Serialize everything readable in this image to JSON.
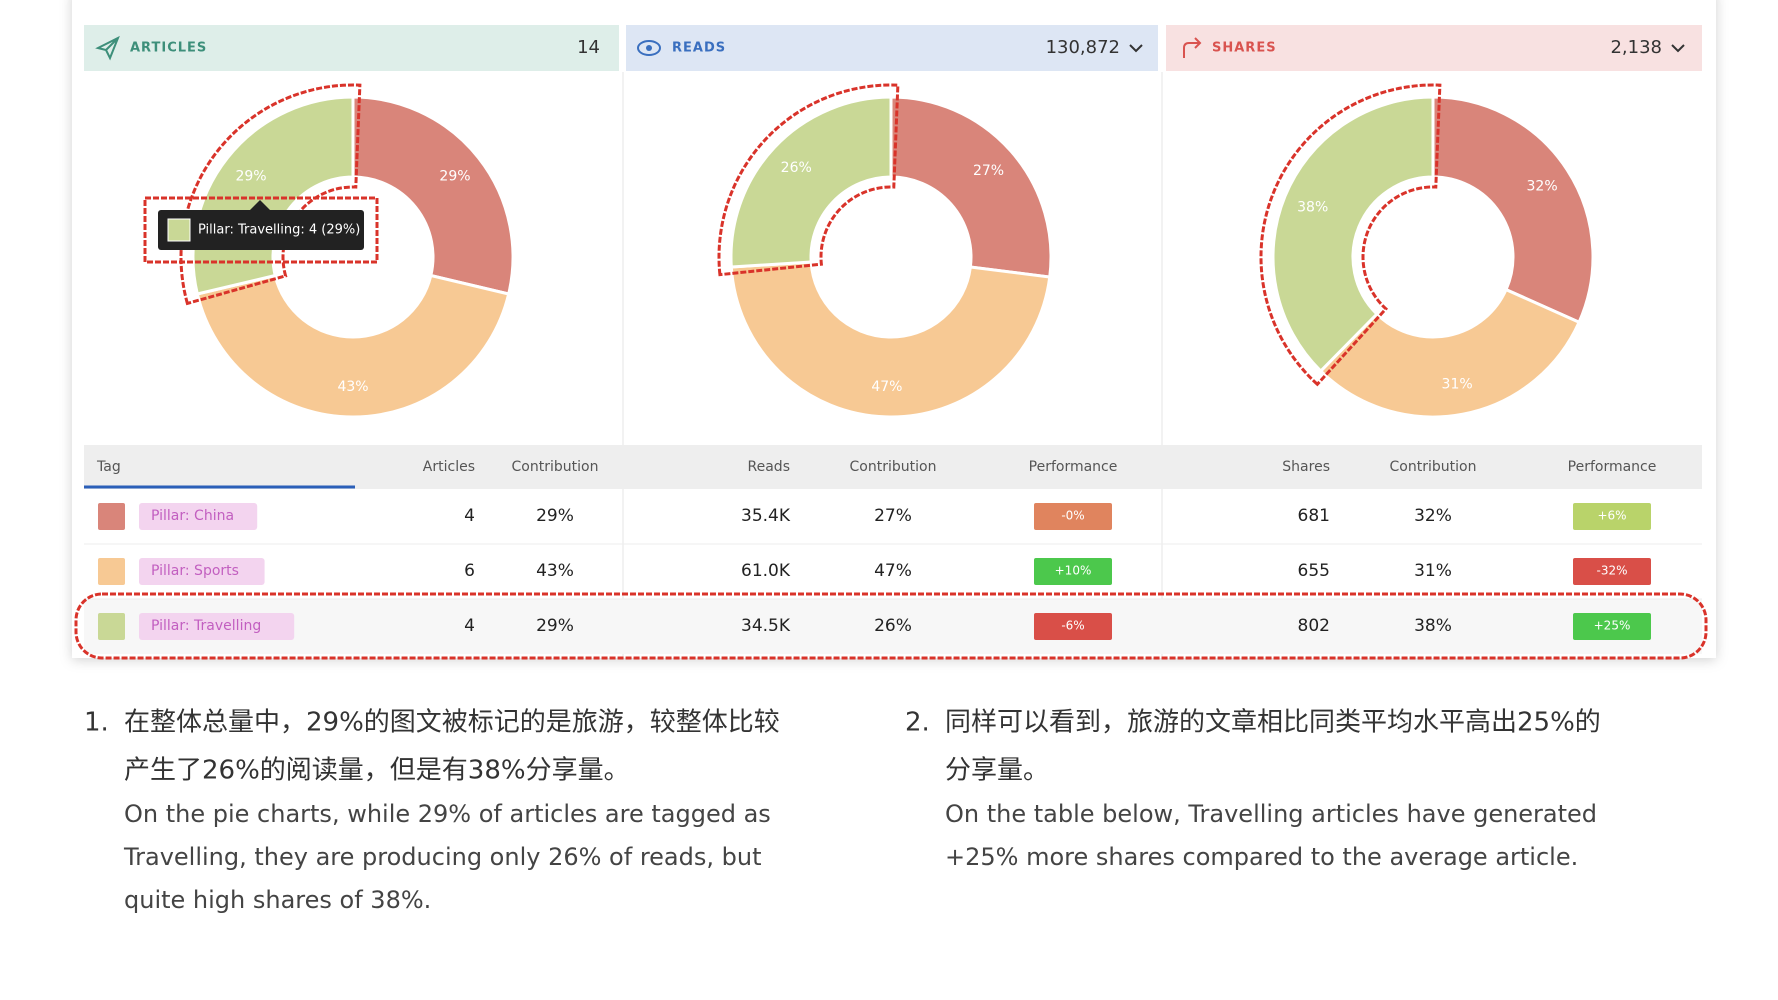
{
  "chart_data": [
    {
      "type": "pie",
      "values": [
        29,
        43,
        29
      ],
      "value_labels": [
        "29%",
        "43%",
        "29%"
      ],
      "colors": [
        "#d9857a",
        "#f7c994",
        "#c9d896"
      ],
      "tooltip": "Pillar: Travelling: 4 (29%)"
    },
    {
      "type": "pie",
      "values": [
        27,
        47,
        26
      ],
      "value_labels": [
        "27%",
        "47%",
        "26%"
      ],
      "colors": [
        "#d9857a",
        "#f7c994",
        "#c9d896"
      ]
    },
    {
      "type": "pie",
      "values": [
        32,
        31,
        38
      ],
      "value_labels": [
        "32%",
        "31%",
        "38%"
      ],
      "colors": [
        "#d9857a",
        "#f7c994",
        "#c9d896"
      ]
    }
  ],
  "panels": [
    {
      "label": "ARTICLES",
      "total": "14"
    },
    {
      "label": "READS",
      "total": "130,872"
    },
    {
      "label": "SHARES",
      "total": "2,138"
    }
  ],
  "table": {
    "columns": [
      "Tag",
      "Articles",
      "Contribution",
      "Reads",
      "Contribution",
      "Performance",
      "Shares",
      "Contribution",
      "Performance"
    ],
    "rows": [
      [
        "Pillar: China",
        "4",
        "29%",
        "35.4K",
        "27%",
        "-0%",
        "681",
        "32%",
        "+6%"
      ],
      [
        "Pillar: Sports",
        "6",
        "43%",
        "61.0K",
        "47%",
        "+10%",
        "655",
        "31%",
        "-32%"
      ],
      [
        "Pillar: Travelling",
        "4",
        "29%",
        "34.5K",
        "26%",
        "-6%",
        "802",
        "38%",
        "+25%"
      ]
    ],
    "performance_colors": [
      [
        "#e0845e",
        "#b9d36a"
      ],
      [
        "#4cc84c",
        "#d94f48"
      ],
      [
        "#d94f48",
        "#4cc84c"
      ]
    ]
  },
  "notes": [
    {
      "number": "1.",
      "chinese": [
        "在整体总量中，29%的图文被标记的是旅游，较整体比较",
        "产生了26%的阅读量，但是有38%分享量。"
      ],
      "english": [
        "On the pie charts, while 29% of articles are tagged as",
        "Travelling, they are producing only 26% of reads, but",
        "quite high shares of 38%."
      ]
    },
    {
      "number": "2.",
      "chinese": [
        "同样可以看到，旅游的文章相比同类平均水平高出25%的",
        "分享量。"
      ],
      "english": [
        "On the table below, Travelling articles have generated",
        "+25% more shares compared to the average article."
      ]
    }
  ]
}
